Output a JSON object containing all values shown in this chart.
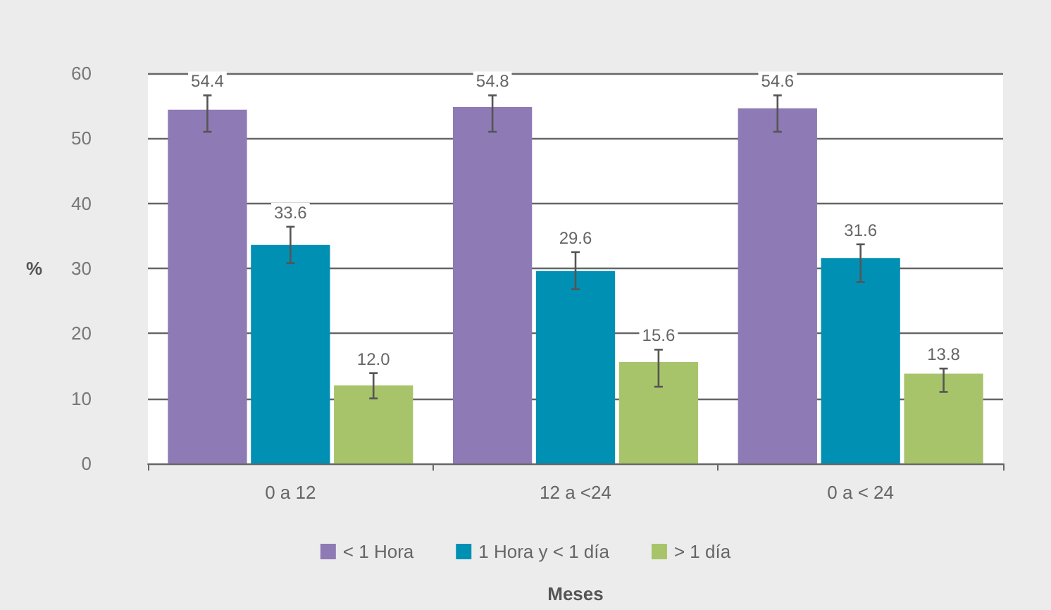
{
  "chart_data": {
    "type": "bar",
    "xlabel": "Meses",
    "ylabel": "%",
    "categories": [
      "0 a 12",
      "12 a <24",
      "0 a < 24"
    ],
    "series": [
      {
        "name": "< 1 Hora",
        "color": "#8e7ab5",
        "values": [
          54.4,
          54.8,
          54.6
        ],
        "value_labels": [
          "54.4",
          "54.8",
          "54.6"
        ],
        "errors": [
          [
            51.0,
            56.6
          ],
          [
            51.0,
            56.6
          ],
          [
            51.0,
            56.6
          ]
        ]
      },
      {
        "name": "1 Hora y < 1 día",
        "color": "#0090b3",
        "values": [
          33.6,
          29.6,
          31.6
        ],
        "value_labels": [
          "33.6",
          "29.6",
          "31.6"
        ],
        "errors": [
          [
            30.8,
            36.4
          ],
          [
            26.8,
            32.5
          ],
          [
            27.9,
            33.7
          ]
        ]
      },
      {
        "name": "> 1 día",
        "color": "#a8c46a",
        "values": [
          12.0,
          15.6,
          13.8
        ],
        "value_labels": [
          "12.0",
          "15.6",
          "13.8"
        ],
        "errors": [
          [
            10.0,
            13.9
          ],
          [
            11.8,
            17.5
          ],
          [
            11.0,
            14.6
          ]
        ]
      }
    ],
    "ylim": [
      0,
      60
    ],
    "yticks": [
      0,
      10,
      20,
      30,
      40,
      50,
      60
    ],
    "grid": "y",
    "legend": "bottom"
  }
}
